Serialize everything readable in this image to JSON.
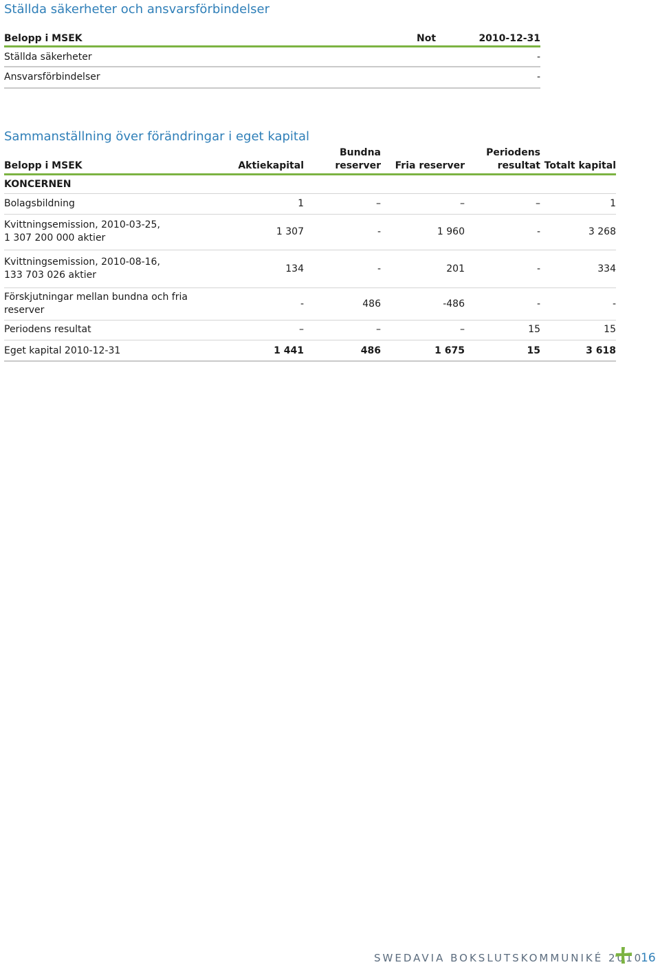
{
  "section1": {
    "title": "Ställda säkerheter och ansvarsförbindelser",
    "header": {
      "label": "Belopp i MSEK",
      "note": "Not",
      "date": "2010-12-31"
    },
    "rows": [
      {
        "label": "Ställda säkerheter",
        "value": "-"
      },
      {
        "label": "Ansvarsförbindelser",
        "value": "-"
      }
    ]
  },
  "section2": {
    "title": "Sammanställning över förändringar i eget kapital",
    "header": {
      "label": "Belopp i MSEK",
      "aktiekapital": "Aktiekapital",
      "bundna_1": "Bundna",
      "bundna_2": "reserver",
      "fria": "Fria reserver",
      "periodens_1": "Periodens",
      "periodens_2": "resultat",
      "totalt": "Totalt kapital"
    },
    "group": "KONCERNEN",
    "rows": [
      {
        "label_1": "Bolagsbildning",
        "label_2": "",
        "v": [
          "1",
          "–",
          "–",
          "–",
          "1"
        ]
      },
      {
        "label_1": "Kvittningsemission, 2010-03-25,",
        "label_2": "1 307 200 000 aktier",
        "v": [
          "1 307",
          "-",
          "1 960",
          "-",
          "3 268"
        ]
      },
      {
        "label_1": "Kvittningsemission, 2010-08-16,",
        "label_2": "133 703 026 aktier",
        "v": [
          "134",
          "-",
          "201",
          "-",
          "334"
        ]
      },
      {
        "label_1": "Förskjutningar mellan bundna och fria",
        "label_2": "reserver",
        "v": [
          "-",
          "486",
          "-486",
          "-",
          "-"
        ]
      },
      {
        "label_1": "Periodens resultat",
        "label_2": "",
        "v": [
          "–",
          "–",
          "–",
          "15",
          "15"
        ]
      }
    ],
    "total": {
      "label": "Eget kapital 2010-12-31",
      "v": [
        "1 441",
        "486",
        "1 675",
        "15",
        "3 618"
      ]
    }
  },
  "footer": {
    "text": "SWEDAVIA BOKSLUTSKOMMUNIKÉ 2010",
    "logo_icon": "swedavia-plus-icon",
    "page": "16",
    "colors": {
      "accent": "#7cb342",
      "title": "#2f7fb8"
    }
  }
}
